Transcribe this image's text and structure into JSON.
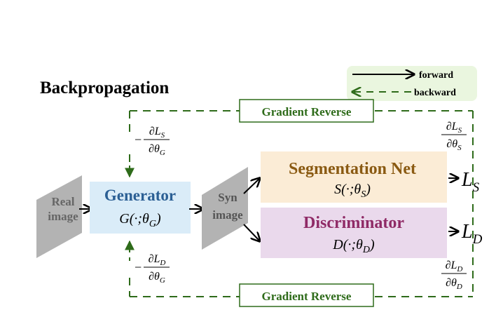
{
  "title": "Backpropagation",
  "legend": {
    "forward": "forward",
    "backward": "backward"
  },
  "gradient_reverse": {
    "top": "Gradient Reverse",
    "bottom": "Gradient Reverse"
  },
  "real_image": {
    "line1": "Real",
    "line2": "image"
  },
  "syn_image": {
    "line1": "Syn",
    "line2": "image"
  },
  "generator": {
    "title": "Generator",
    "func": "G(·;θ",
    "sub": "G",
    "close": ")"
  },
  "segmentation": {
    "title": "Segmentation Net",
    "func": "S(·;θ",
    "sub": "S",
    "close": ")"
  },
  "discriminator": {
    "title": "Discriminator",
    "func": "D(·;θ",
    "sub": "D",
    "close": ")"
  },
  "outputs": {
    "ls": "L",
    "ls_sub": "S",
    "ld": "L",
    "ld_sub": "D"
  },
  "grads": {
    "gen_top": {
      "sign": "−",
      "num": "∂L",
      "num_sub": "S",
      "den": "∂θ",
      "den_sub": "G"
    },
    "gen_bottom": {
      "sign": "−",
      "num": "∂L",
      "num_sub": "D",
      "den": "∂θ",
      "den_sub": "G"
    },
    "seg": {
      "num": "∂L",
      "num_sub": "S",
      "den": "∂θ",
      "den_sub": "S"
    },
    "disc": {
      "num": "∂L",
      "num_sub": "D",
      "den": "∂θ",
      "den_sub": "D"
    }
  },
  "colors": {
    "dash_green": "#2e6b1a",
    "legend_bg": "#eaf6df",
    "generator_bg": "#daecf8",
    "generator_text": "#2b5f94",
    "segmentation_bg": "#fbecd6",
    "segmentation_text": "#8a5a12",
    "discriminator_bg": "#ead9ec",
    "discriminator_text": "#8f2a66",
    "image_gray": "#b3b3b3"
  }
}
